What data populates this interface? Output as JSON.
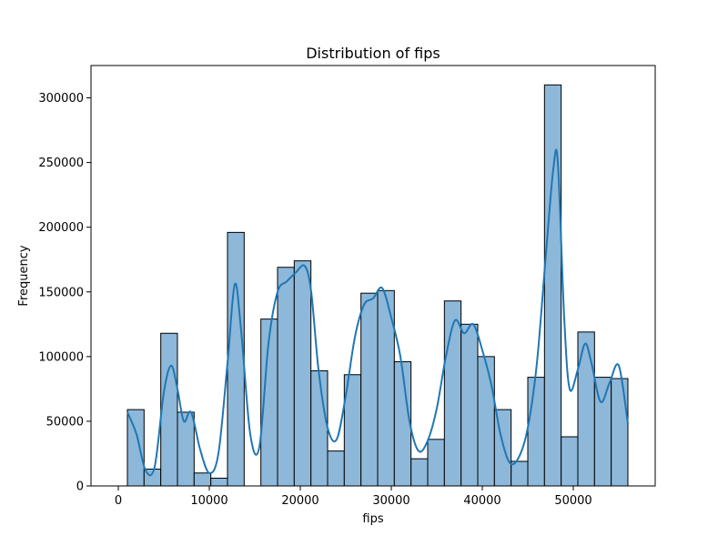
{
  "chart_data": {
    "type": "bar",
    "title": "Distribution of fips",
    "xlabel": "fips",
    "ylabel": "Frequency",
    "xlim": [
      -3000,
      59000
    ],
    "ylim": [
      0,
      325000
    ],
    "x_ticks": [
      0,
      10000,
      20000,
      30000,
      40000,
      50000
    ],
    "y_ticks": [
      0,
      50000,
      100000,
      150000,
      200000,
      250000,
      300000
    ],
    "bin_start": 1000,
    "bin_end": 56000,
    "bins": [
      {
        "x0": 1000,
        "x1": 2833,
        "count": 59000
      },
      {
        "x0": 2833,
        "x1": 4667,
        "count": 13000
      },
      {
        "x0": 4667,
        "x1": 6500,
        "count": 118000
      },
      {
        "x0": 6500,
        "x1": 8333,
        "count": 57000
      },
      {
        "x0": 8333,
        "x1": 10167,
        "count": 10000
      },
      {
        "x0": 10167,
        "x1": 12000,
        "count": 6000
      },
      {
        "x0": 12000,
        "x1": 13833,
        "count": 196000
      },
      {
        "x0": 13833,
        "x1": 15667,
        "count": 0
      },
      {
        "x0": 15667,
        "x1": 17500,
        "count": 129000
      },
      {
        "x0": 17500,
        "x1": 19333,
        "count": 169000
      },
      {
        "x0": 19333,
        "x1": 21167,
        "count": 174000
      },
      {
        "x0": 21167,
        "x1": 23000,
        "count": 89000
      },
      {
        "x0": 23000,
        "x1": 24833,
        "count": 27000
      },
      {
        "x0": 24833,
        "x1": 26667,
        "count": 86000
      },
      {
        "x0": 26667,
        "x1": 28500,
        "count": 149000
      },
      {
        "x0": 28500,
        "x1": 30333,
        "count": 151000
      },
      {
        "x0": 30333,
        "x1": 32167,
        "count": 96000
      },
      {
        "x0": 32167,
        "x1": 34000,
        "count": 21000
      },
      {
        "x0": 34000,
        "x1": 35833,
        "count": 36000
      },
      {
        "x0": 35833,
        "x1": 37667,
        "count": 143000
      },
      {
        "x0": 37667,
        "x1": 39500,
        "count": 125000
      },
      {
        "x0": 39500,
        "x1": 41333,
        "count": 100000
      },
      {
        "x0": 41333,
        "x1": 43167,
        "count": 59000
      },
      {
        "x0": 43167,
        "x1": 45000,
        "count": 19000
      },
      {
        "x0": 45000,
        "x1": 46833,
        "count": 84000
      },
      {
        "x0": 46833,
        "x1": 48667,
        "count": 310000
      },
      {
        "x0": 48667,
        "x1": 50500,
        "count": 38000
      },
      {
        "x0": 50500,
        "x1": 52333,
        "count": 119000
      },
      {
        "x0": 52333,
        "x1": 54167,
        "count": 84000
      },
      {
        "x0": 54167,
        "x1": 56000,
        "count": 83000
      }
    ],
    "kde": {
      "x": [
        1000,
        2000,
        3000,
        4000,
        5000,
        5800,
        6500,
        7200,
        8000,
        9000,
        10000,
        11000,
        12000,
        12800,
        13500,
        14500,
        15500,
        16500,
        17500,
        18500,
        19500,
        20500,
        21200,
        22000,
        23000,
        24000,
        25000,
        26000,
        27000,
        28000,
        29000,
        30000,
        31000,
        32000,
        33000,
        34000,
        35000,
        36000,
        37000,
        38000,
        39000,
        40000,
        41000,
        42000,
        43000,
        44000,
        45000,
        46000,
        47000,
        47800,
        48300,
        49000,
        49600,
        50500,
        51300,
        52000,
        53000,
        54000,
        55000,
        56000
      ],
      "y": [
        57000,
        40000,
        12000,
        15000,
        72000,
        93000,
        75000,
        50000,
        57000,
        28000,
        10000,
        25000,
        95000,
        156000,
        120000,
        40000,
        30000,
        110000,
        150000,
        158000,
        165000,
        170000,
        150000,
        90000,
        45000,
        36000,
        70000,
        115000,
        140000,
        145000,
        153000,
        130000,
        100000,
        50000,
        27000,
        35000,
        60000,
        100000,
        128000,
        118000,
        125000,
        105000,
        78000,
        40000,
        18000,
        22000,
        45000,
        95000,
        180000,
        245000,
        250000,
        130000,
        75000,
        90000,
        110000,
        95000,
        65000,
        80000,
        93000,
        48000
      ]
    },
    "bar_color": "#8db8d9",
    "bar_edge_color": "#000000",
    "kde_color": "#1f77b4",
    "grid": false,
    "legend": "none"
  }
}
